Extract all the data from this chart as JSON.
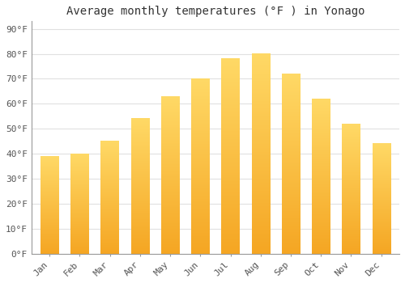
{
  "title": "Average monthly temperatures (°F ) in Yonago",
  "months": [
    "Jan",
    "Feb",
    "Mar",
    "Apr",
    "May",
    "Jun",
    "Jul",
    "Aug",
    "Sep",
    "Oct",
    "Nov",
    "Dec"
  ],
  "values": [
    39,
    40,
    45,
    54,
    63,
    70,
    78,
    80,
    72,
    62,
    52,
    44
  ],
  "bar_color_bottom": "#F5A623",
  "bar_color_top": "#FFD966",
  "background_color": "#FFFFFF",
  "grid_color": "#E0E0E0",
  "ytick_labels": [
    "0°F",
    "10°F",
    "20°F",
    "30°F",
    "40°F",
    "50°F",
    "60°F",
    "70°F",
    "80°F",
    "90°F"
  ],
  "ytick_values": [
    0,
    10,
    20,
    30,
    40,
    50,
    60,
    70,
    80,
    90
  ],
  "ylim": [
    0,
    93
  ],
  "title_fontsize": 10,
  "tick_fontsize": 8,
  "title_font": "monospace",
  "tick_font": "monospace"
}
